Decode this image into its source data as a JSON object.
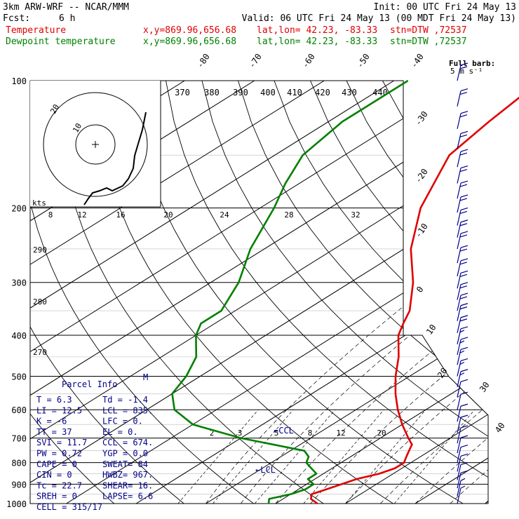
{
  "header": {
    "model": "3km ARW-WRF -- NCAR/MMM",
    "init": "Init: 00 UTC Fri 24 May 13",
    "fcst_label": "Fcst:",
    "fcst_value": "6 h",
    "valid": "Valid: 06 UTC Fri 24 May 13 (00 MDT Fri 24 May 13)",
    "temperature_label": "Temperature",
    "dewpoint_label": "Dewpoint temperature",
    "xy": "x,y=869.96,656.68",
    "latlon": "lat,lon= 42.23, -83.33",
    "stn": "stn=DTW ,72537"
  },
  "colors": {
    "temperature": "#e00000",
    "dewpoint": "#008000",
    "wind": "#00008b",
    "grid": "#000000"
  },
  "wind_legend": {
    "title": "Full barb:",
    "value": "5 m s⁻¹"
  },
  "hodograph": {
    "ring_labels": [
      "10",
      "20"
    ],
    "units": "kts",
    "speed_ticks": [
      "8",
      "12",
      "16",
      "20",
      "24",
      "28",
      "32"
    ]
  },
  "parcel_info": {
    "title": "Parcel Info",
    "rows": [
      [
        "T  =     6.3",
        "Td =  -1.4"
      ],
      [
        "LI =    12.5",
        "LCL =  835."
      ],
      [
        "K  =      -6",
        "LFC =    0."
      ],
      [
        "TT =      37",
        "EL  =    0."
      ],
      [
        "SVI =   11.7",
        "CCL =  674."
      ],
      [
        "PW =    0.72",
        "YGP =   0.0"
      ],
      [
        "CAPE =     0",
        "SWEAT=   84"
      ],
      [
        "CIN =      0",
        "HWBZ=  967."
      ],
      [
        "Tc =    22.7",
        "SHEAR=  16."
      ],
      [
        "SREH =     0",
        "LAPSE=  6.6"
      ],
      [
        "CELL = 315/17",
        ""
      ]
    ]
  },
  "annotations": {
    "m_label": "M",
    "ccl_marker": "CCL",
    "lcl_marker": "LCL"
  },
  "chart_data": {
    "type": "line",
    "yscale": "log",
    "ylim": [
      1000,
      100
    ],
    "pressure_ticks": [
      100,
      200,
      300,
      400,
      500,
      600,
      700,
      800,
      900,
      1000
    ],
    "isotherm_labels_top": [
      "-80",
      "-70",
      "-60",
      "-50",
      "-40"
    ],
    "isotherm_labels_right": [
      "-30",
      "-20",
      "-10",
      "0",
      "10",
      "20",
      "30",
      "40"
    ],
    "theta_labels": [
      "370",
      "380",
      "390",
      "400",
      "410",
      "420",
      "430",
      "440"
    ],
    "theta_left_labels": [
      "290",
      "280",
      "270"
    ],
    "mixing_ratio_labels": [
      "2",
      "3",
      "5",
      "8",
      "12",
      "20"
    ],
    "series": [
      {
        "name": "Temperature",
        "p": [
          1000,
          975,
          950,
          925,
          900,
          875,
          850,
          825,
          800,
          775,
          750,
          725,
          700,
          650,
          600,
          550,
          500,
          450,
          400,
          375,
          350,
          300,
          250,
          200,
          150,
          125,
          100
        ],
        "t": [
          6,
          4,
          3,
          4,
          5,
          6,
          8,
          9,
          9,
          8,
          7,
          6,
          4,
          0,
          -4,
          -8,
          -12,
          -16,
          -21,
          -23,
          -25,
          -31,
          -39,
          -47,
          -55,
          -57,
          -59
        ]
      },
      {
        "name": "Dewpoint temperature",
        "p": [
          1000,
          975,
          950,
          925,
          900,
          875,
          850,
          825,
          800,
          775,
          750,
          700,
          650,
          600,
          550,
          500,
          450,
          400,
          375,
          350,
          300,
          250,
          200,
          175,
          150,
          125,
          100
        ],
        "t": [
          -1,
          -2,
          0,
          1,
          1,
          -1,
          -1,
          -3,
          -5,
          -6,
          -8,
          -20,
          -30,
          -36,
          -40,
          -42,
          -45,
          -50,
          -52,
          -52,
          -56,
          -62,
          -68,
          -72,
          -76,
          -78,
          -78
        ]
      }
    ],
    "wind_barbs": {
      "p": [
        100,
        115,
        130,
        145,
        160,
        175,
        190,
        205,
        220,
        235,
        250,
        270,
        290,
        310,
        330,
        350,
        370,
        395,
        420,
        445,
        470,
        500,
        530,
        560,
        600,
        640,
        680,
        720,
        760,
        800,
        840,
        880,
        920,
        960,
        1000
      ],
      "speed_ms": [
        20,
        20,
        20,
        20,
        20,
        20,
        20,
        20,
        20,
        20,
        20,
        20,
        20,
        20,
        20,
        20,
        20,
        20,
        15,
        15,
        15,
        15,
        15,
        10,
        10,
        10,
        10,
        10,
        10,
        10,
        10,
        10,
        10,
        5,
        5
      ],
      "dir_deg": [
        250,
        250,
        250,
        250,
        250,
        250,
        250,
        250,
        250,
        250,
        250,
        250,
        250,
        250,
        250,
        250,
        250,
        250,
        250,
        250,
        250,
        250,
        250,
        260,
        260,
        270,
        270,
        280,
        280,
        290,
        290,
        300,
        300,
        310,
        310
      ]
    }
  }
}
